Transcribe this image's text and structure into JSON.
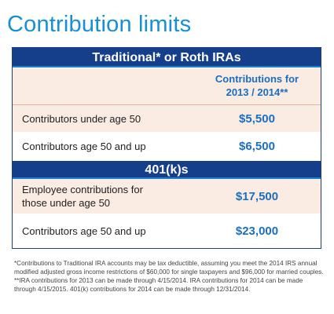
{
  "title": "Contribution limits",
  "ira": {
    "header": "Traditional* or Roth IRAs",
    "column_header_line1": "Contributions for",
    "column_header_line2": "2013 / 2014**",
    "rows": [
      {
        "label": "Contributors under age 50",
        "value": "$5,500"
      },
      {
        "label": "Contributors age 50 and up",
        "value": "$6,500"
      }
    ]
  },
  "k401": {
    "header": "401(k)s",
    "rows": [
      {
        "label_line1": "Employee contributions for",
        "label_line2": "those under age 50",
        "value": "$17,500"
      },
      {
        "label": "Contributors age 50 and up",
        "value": "$23,000"
      }
    ]
  },
  "footnotes": {
    "note1": "*Contributions to Traditional IRA accounts may be tax deductible, assuming you meet the 2014 IRS annual modified adjusted gross income restrictions of $60,000 for single taxpayers and $96,000 for married couples.",
    "note2": "**IRA contributions for 2013 can be made through 4/15/2014. IRA contributions for 2014 can be made through 4/15/2015. 401(k) contributions for 2014 can be made through 12/31/2014."
  },
  "colors": {
    "title": "#1590d6",
    "band": "#153f8b",
    "value": "#1a6fc3",
    "shade": "#faebe3"
  }
}
